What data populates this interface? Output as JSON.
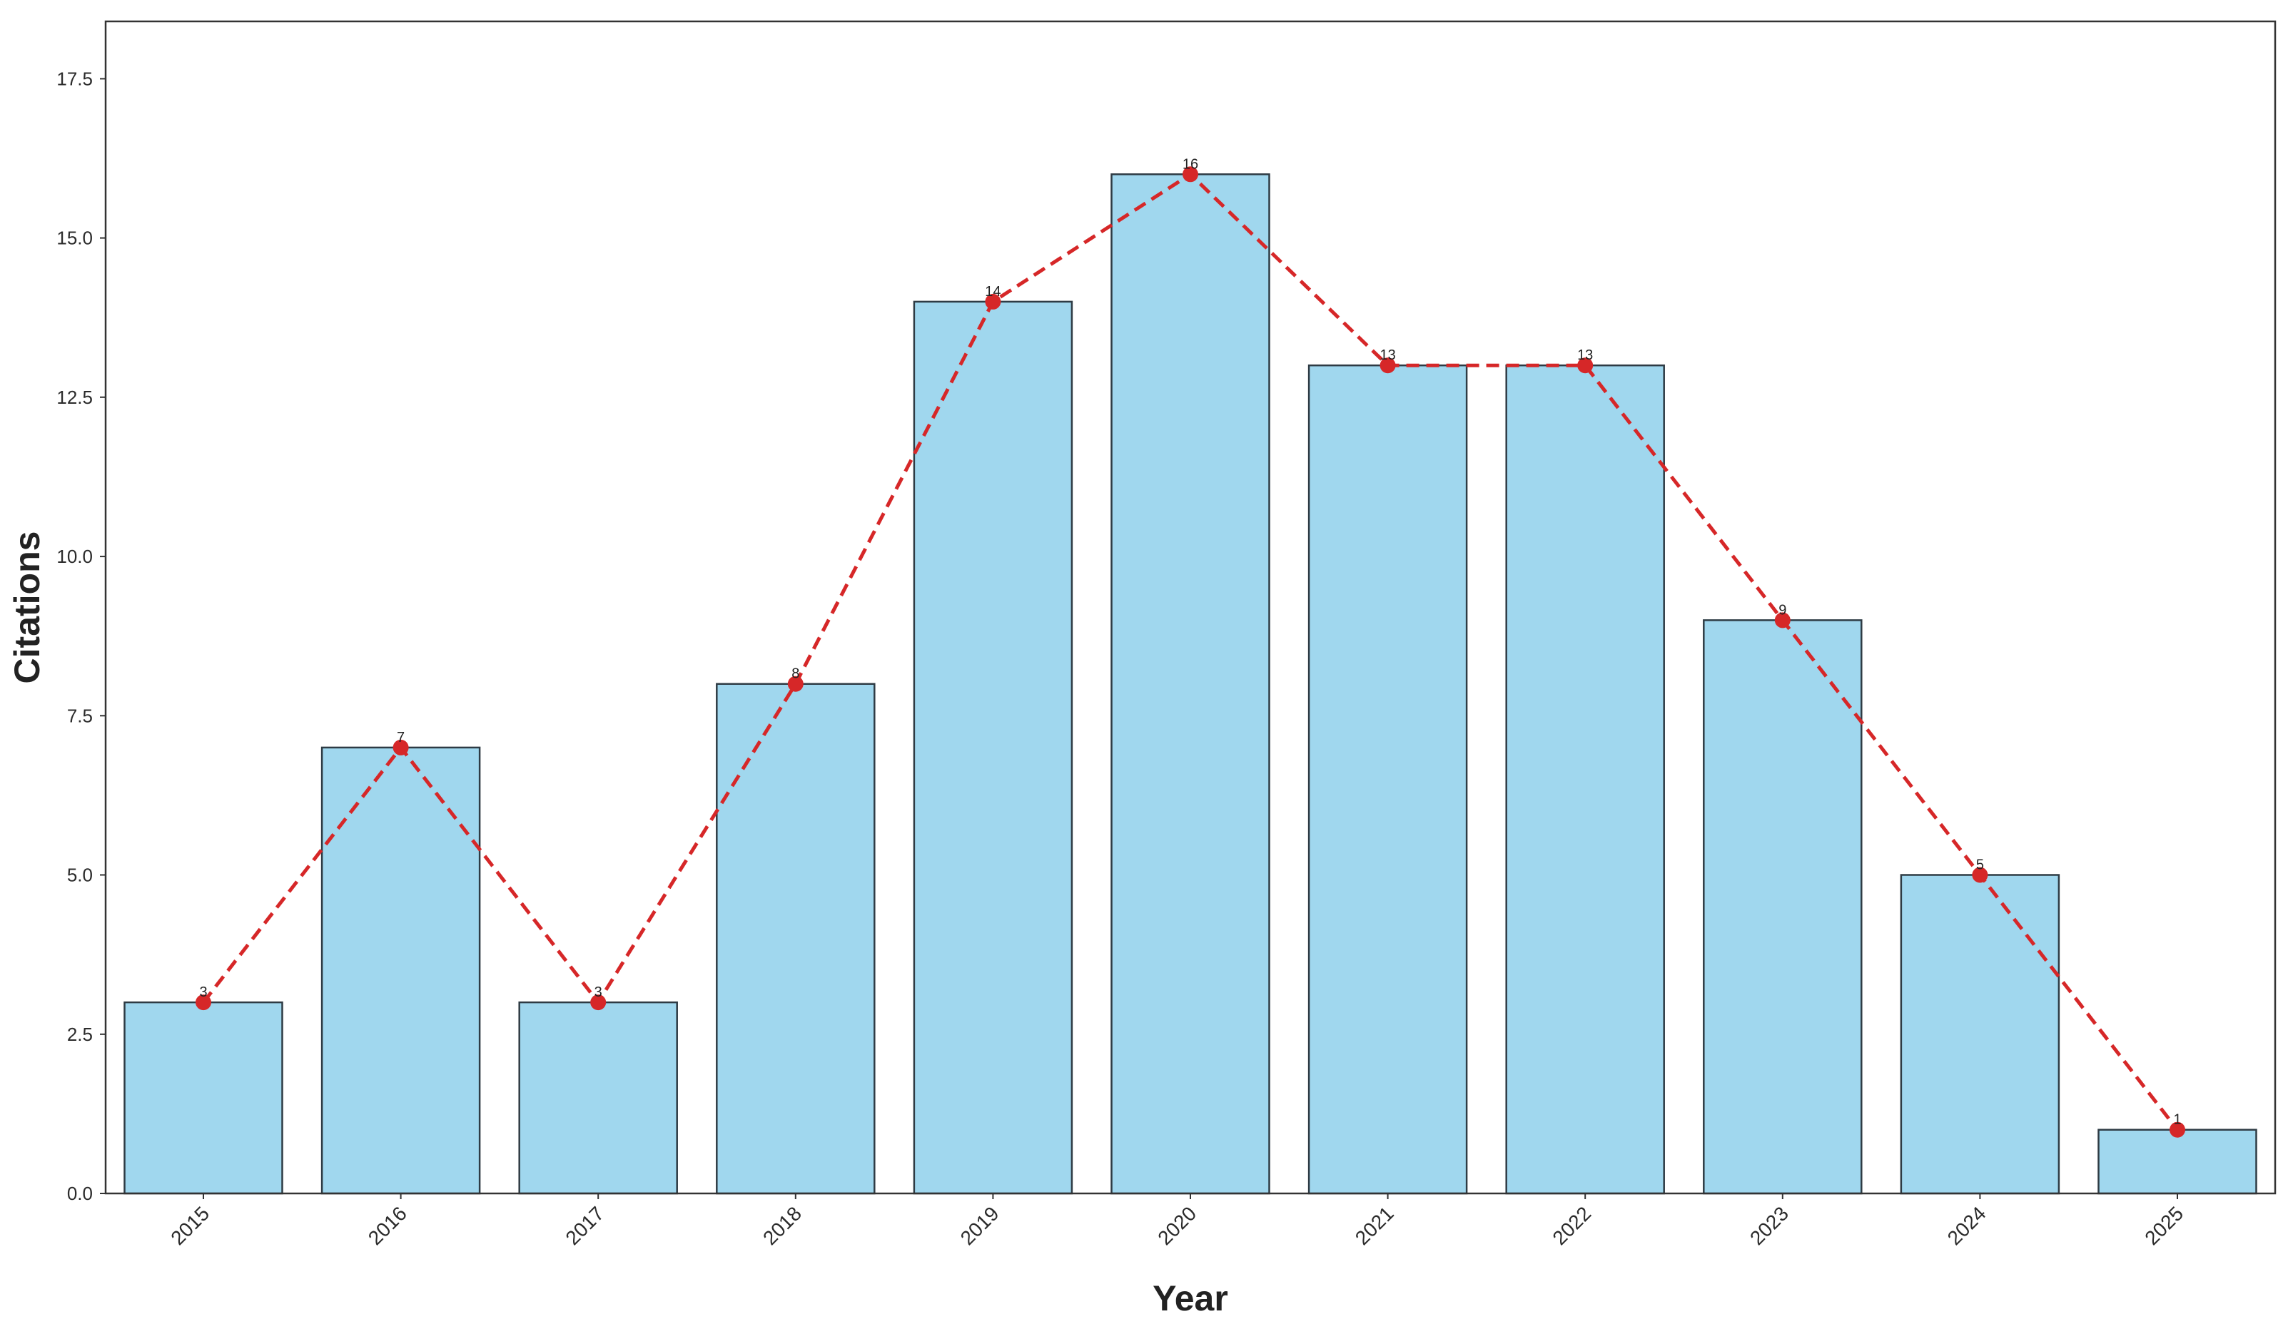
{
  "chart_data": {
    "type": "bar",
    "title": "",
    "xlabel": "Year",
    "ylabel": "Citations",
    "categories": [
      "2015",
      "2016",
      "2017",
      "2018",
      "2019",
      "2020",
      "2021",
      "2022",
      "2023",
      "2024",
      "2025"
    ],
    "series": [
      {
        "type": "bar",
        "values": [
          3,
          7,
          3,
          8,
          14,
          16,
          13,
          13,
          9,
          5,
          1
        ]
      },
      {
        "type": "line",
        "style": "dashed",
        "marker": "circle",
        "values": [
          3,
          7,
          3,
          8,
          14,
          16,
          13,
          13,
          9,
          5,
          1
        ]
      }
    ],
    "data_labels": [
      "3",
      "7",
      "3",
      "8",
      "14",
      "16",
      "13",
      "13",
      "9",
      "5",
      "1"
    ],
    "yticks": [
      "0.0",
      "2.5",
      "5.0",
      "7.5",
      "10.0",
      "12.5",
      "15.0",
      "17.5"
    ],
    "ylim": [
      0,
      18.4
    ],
    "grid": false,
    "legend": "none",
    "xtick_rotation": 45,
    "colors": {
      "bar_fill": "#a0d7ee",
      "bar_edge": "#2e3b44",
      "line": "#d62728",
      "marker": "#d62728",
      "frame": "#333333"
    }
  }
}
